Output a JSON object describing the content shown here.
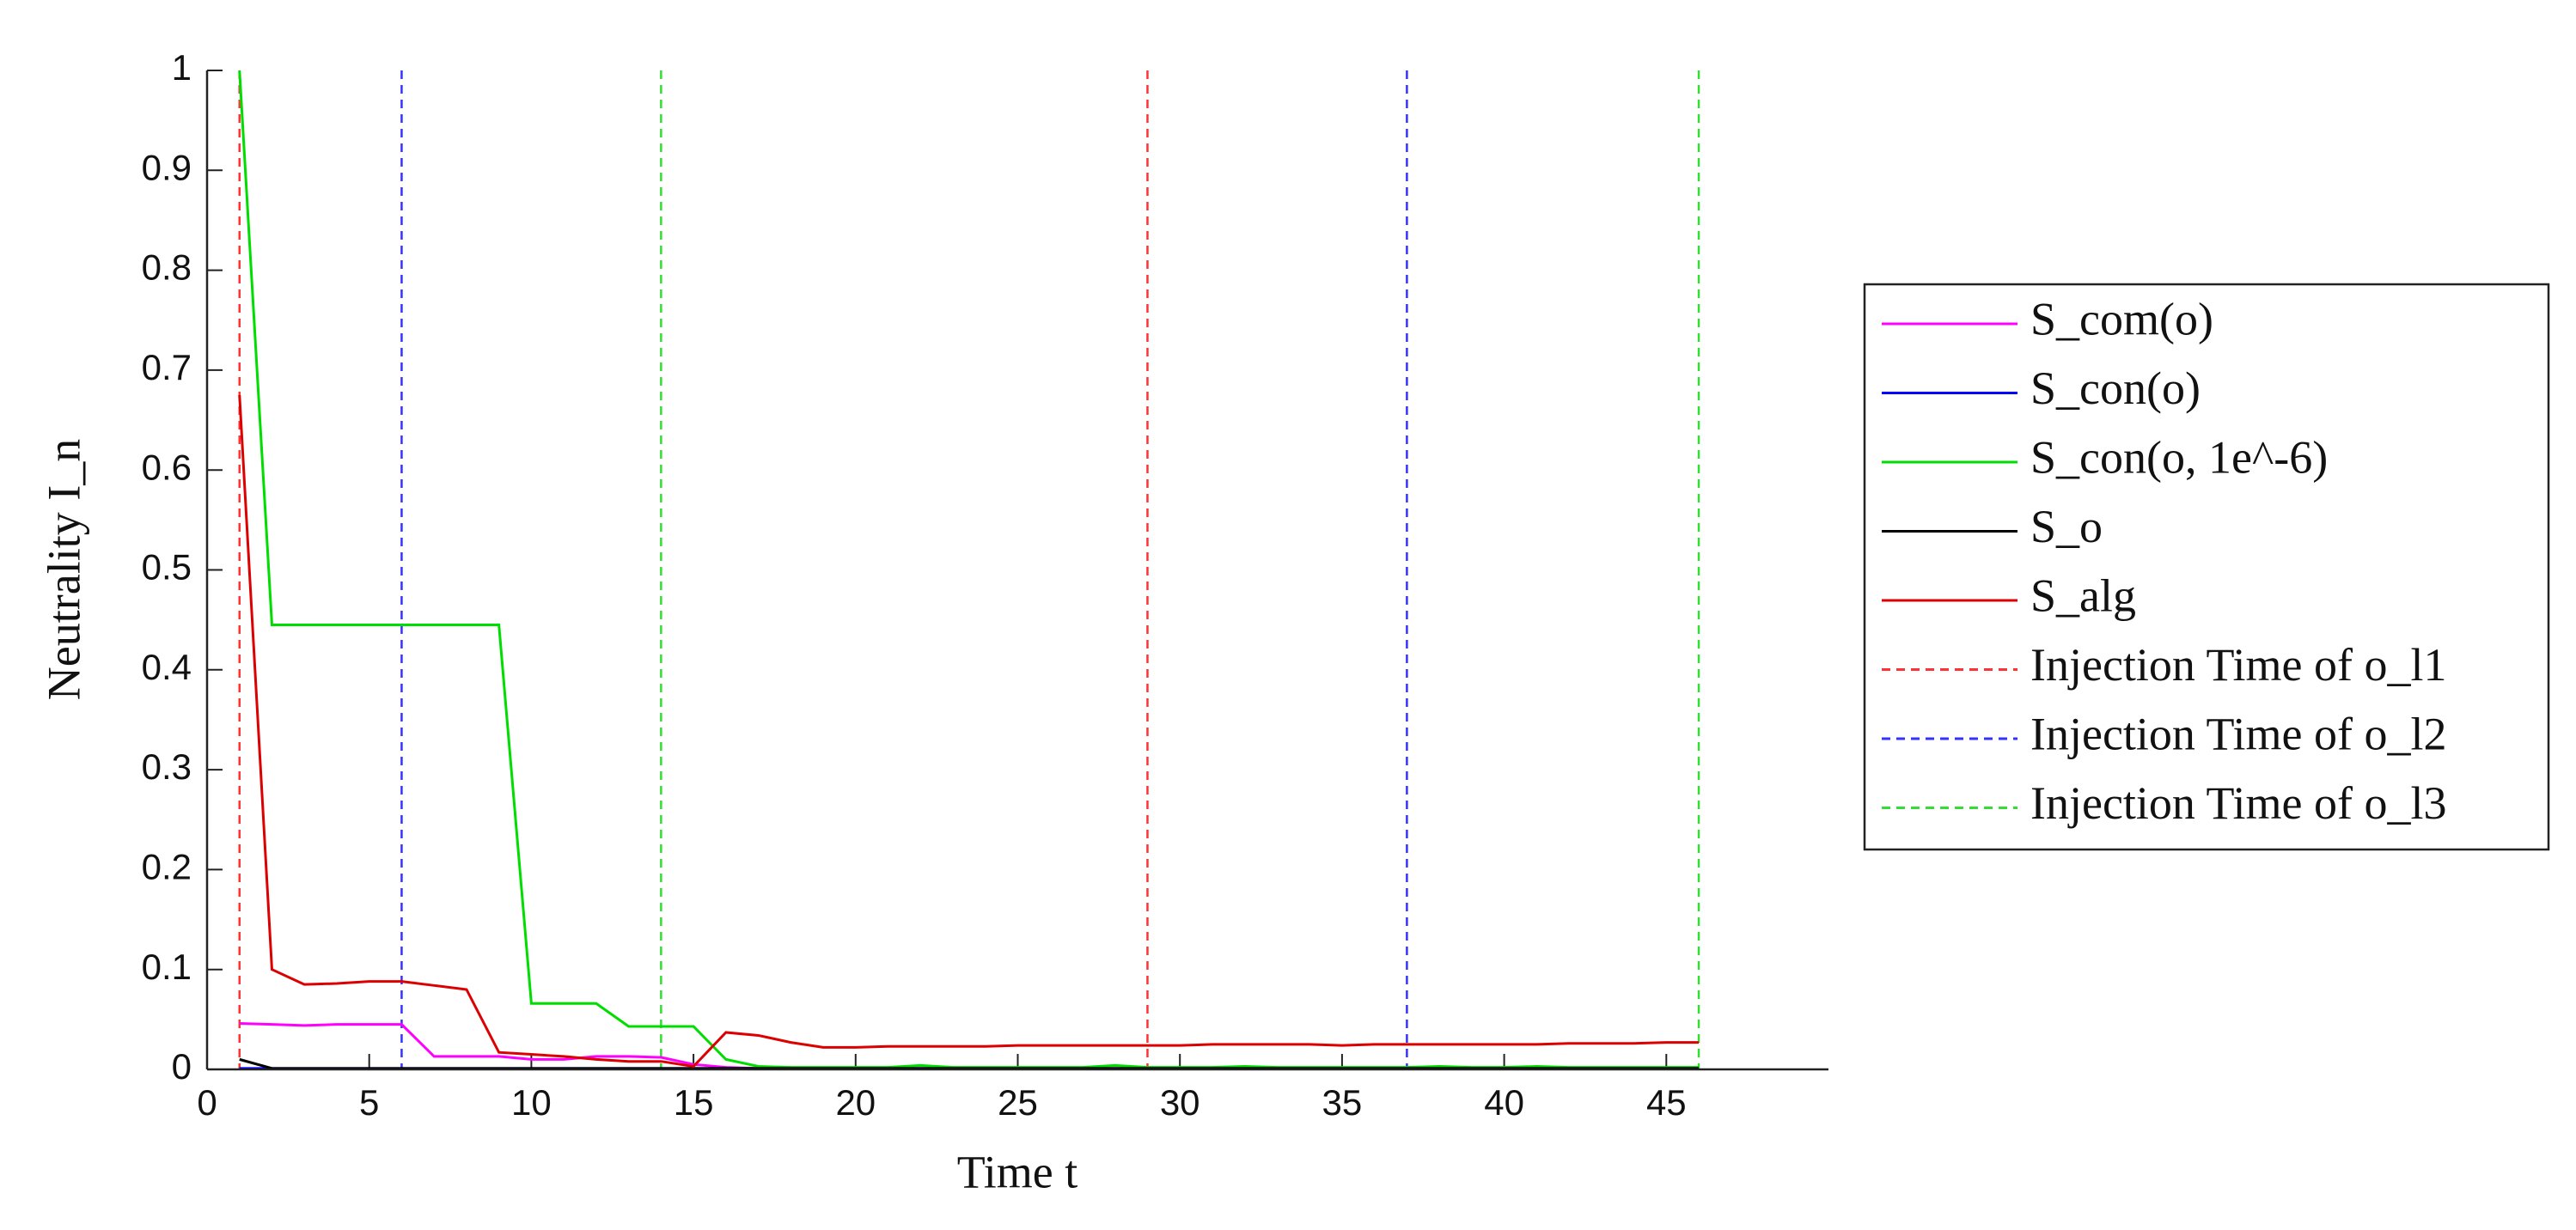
{
  "chart_data": {
    "type": "line",
    "xlabel": "Time t",
    "ylabel": "Neutrality I_n",
    "x": [
      1,
      2,
      3,
      4,
      5,
      6,
      7,
      8,
      9,
      10,
      11,
      12,
      13,
      14,
      15,
      16,
      17,
      18,
      19,
      20,
      21,
      22,
      23,
      24,
      25,
      26,
      27,
      28,
      29,
      30,
      31,
      32,
      33,
      34,
      35,
      36,
      37,
      38,
      39,
      40,
      41,
      42,
      43,
      44,
      45,
      46
    ],
    "series": [
      {
        "name": "S_com(o)",
        "color": "#ff00ff",
        "values": [
          0.046,
          0.045,
          0.044,
          0.045,
          0.045,
          0.045,
          0.013,
          0.013,
          0.013,
          0.01,
          0.01,
          0.013,
          0.013,
          0.012,
          0.005,
          0.002,
          0.001,
          0.001,
          0.001,
          0.001,
          0.001,
          0.001,
          0.001,
          0.001,
          0.001,
          0.001,
          0.001,
          0.001,
          0.001,
          0.001,
          0.001,
          0.001,
          0.001,
          0.001,
          0.001,
          0.001,
          0.001,
          0.001,
          0.001,
          0.001,
          0.001,
          0.001,
          0.001,
          0.001,
          0.001,
          0.001
        ]
      },
      {
        "name": "S_con(o)",
        "color": "#0000ff",
        "values": [
          0.001,
          0.001,
          0.001,
          0.001,
          0.001,
          0.001,
          0.001,
          0.001,
          0.001,
          0.001,
          0.001,
          0.001,
          0.001,
          0.001,
          0.001,
          0.001,
          0.001,
          0.001,
          0.001,
          0.001,
          0.001,
          0.001,
          0.001,
          0.001,
          0.001,
          0.001,
          0.001,
          0.001,
          0.001,
          0.001,
          0.001,
          0.001,
          0.001,
          0.001,
          0.001,
          0.001,
          0.001,
          0.001,
          0.001,
          0.001,
          0.001,
          0.001,
          0.001,
          0.001,
          0.001,
          0.001
        ]
      },
      {
        "name": "S_con(o, 1e^-6)",
        "color": "#00dd00",
        "values": [
          1,
          0.445,
          0.445,
          0.445,
          0.445,
          0.445,
          0.445,
          0.445,
          0.445,
          0.066,
          0.066,
          0.066,
          0.043,
          0.043,
          0.043,
          0.01,
          0.003,
          0.002,
          0.002,
          0.002,
          0.002,
          0.004,
          0.002,
          0.002,
          0.002,
          0.002,
          0.002,
          0.004,
          0.002,
          0.002,
          0.002,
          0.003,
          0.002,
          0.002,
          0.002,
          0.002,
          0.002,
          0.003,
          0.002,
          0.002,
          0.003,
          0.002,
          0.002,
          0.002,
          0.002,
          0.002
        ]
      },
      {
        "name": "S_o",
        "color": "#000000",
        "values": [
          0.01,
          0.001,
          0.001,
          0.001,
          0.001,
          0.001,
          0.001,
          0.001,
          0.001,
          0.001,
          0.001,
          0.001,
          0.001,
          0.001,
          0.001,
          0.001,
          0.001,
          0.001,
          0.001,
          0.001,
          0.001,
          0.001,
          0.001,
          0.001,
          0.001,
          0.001,
          0.001,
          0.001,
          0.001,
          0.001,
          0.001,
          0.001,
          0.001,
          0.001,
          0.001,
          0.001,
          0.001,
          0.001,
          0.001,
          0.001,
          0.001,
          0.001,
          0.001,
          0.001,
          0.001,
          0.001
        ]
      },
      {
        "name": "S_alg",
        "color": "#dd0000",
        "values": [
          0.675,
          0.1,
          0.085,
          0.086,
          0.088,
          0.088,
          0.084,
          0.08,
          0.017,
          0.015,
          0.013,
          0.01,
          0.008,
          0.008,
          0.003,
          0.037,
          0.034,
          0.027,
          0.022,
          0.022,
          0.023,
          0.023,
          0.023,
          0.023,
          0.024,
          0.024,
          0.024,
          0.024,
          0.024,
          0.024,
          0.025,
          0.025,
          0.025,
          0.025,
          0.024,
          0.025,
          0.025,
          0.025,
          0.025,
          0.025,
          0.025,
          0.026,
          0.026,
          0.026,
          0.027,
          0.027
        ]
      }
    ],
    "vlines": [
      {
        "name": "Injection Time of o_l1",
        "color": "#ff3333",
        "x": [
          1,
          29
        ]
      },
      {
        "name": "Injection Time of o_l2",
        "color": "#3333ff",
        "x": [
          6,
          37
        ]
      },
      {
        "name": "Injection Time of o_l3",
        "color": "#33dd33",
        "x": [
          14,
          46
        ]
      }
    ],
    "xlim": [
      0,
      50
    ],
    "xticks": [
      0,
      5,
      10,
      15,
      20,
      25,
      30,
      35,
      40,
      45
    ],
    "ylim": [
      0,
      1
    ],
    "yticks": [
      0,
      0.1,
      0.2,
      0.3,
      0.4,
      0.5,
      0.6,
      0.7,
      0.8,
      0.9,
      1
    ],
    "legend": "right"
  }
}
